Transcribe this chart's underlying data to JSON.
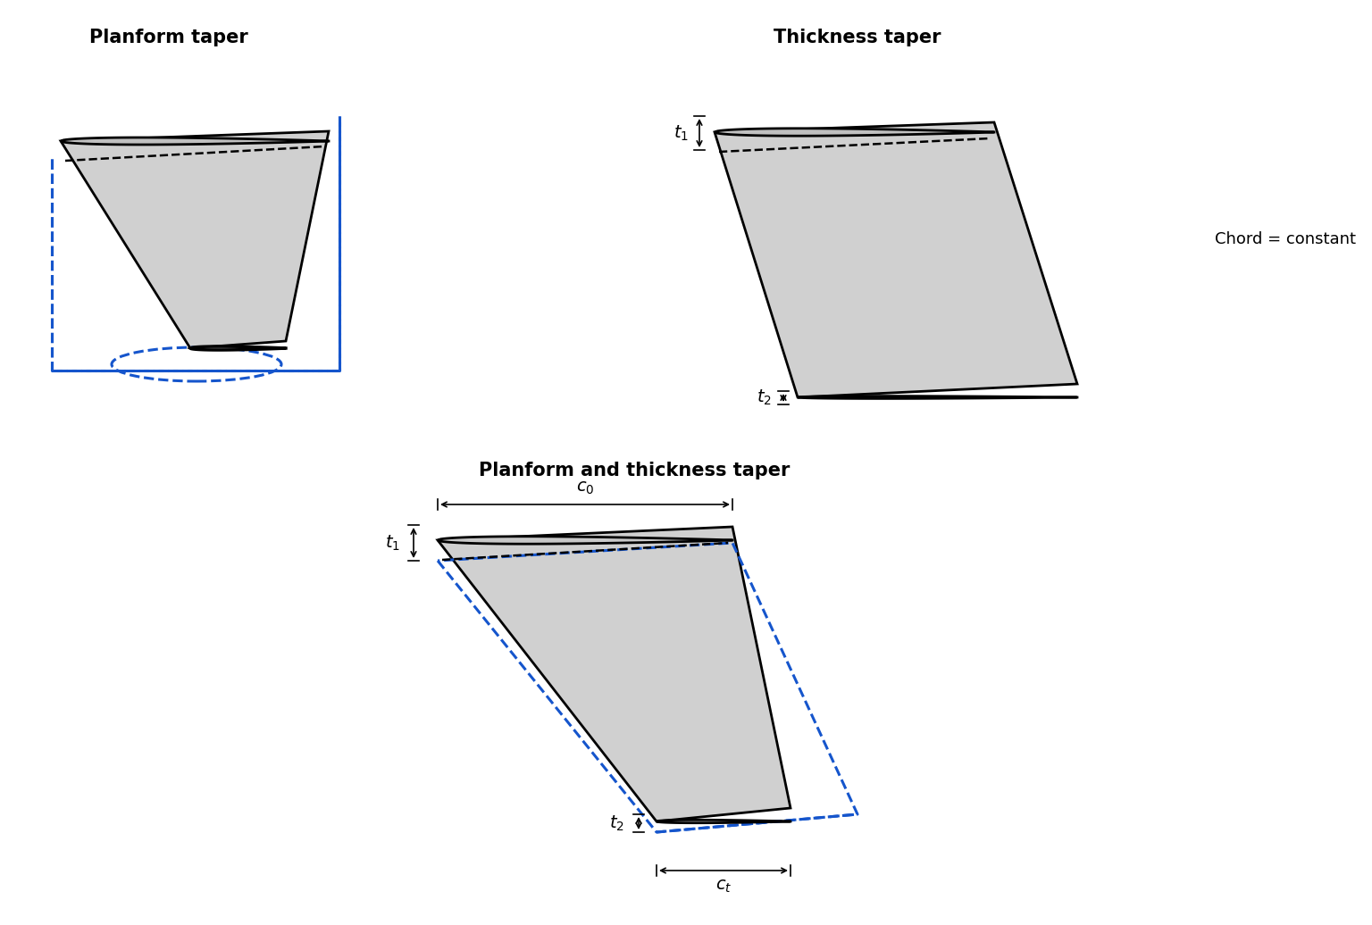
{
  "bg_color": "#ffffff",
  "wing_light": "#d0d0d0",
  "wing_med": "#b8b8b8",
  "wing_dark": "#888888",
  "blue_dash": "#1555cc",
  "black": "#000000",
  "panel1_title": "Planform taper",
  "panel2_title": "Thickness taper",
  "panel3_title": "Planform and thickness taper",
  "chord_label": "Chord = constant",
  "title_fontsize": 15,
  "label_fontsize": 13
}
